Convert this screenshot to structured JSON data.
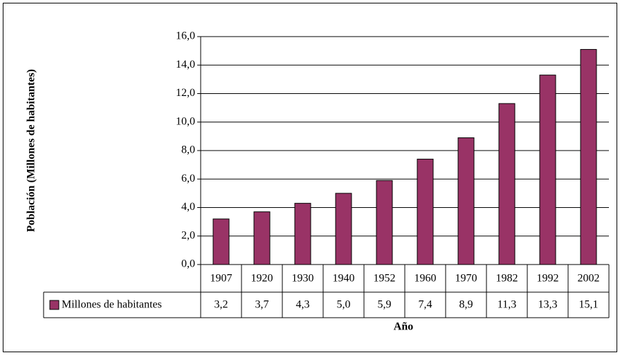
{
  "chart_data": {
    "type": "bar",
    "y_label": "Población (Millones de habitantes)",
    "x_label": "Año",
    "categories": [
      "1907",
      "1920",
      "1930",
      "1940",
      "1952",
      "1960",
      "1970",
      "1982",
      "1992",
      "2002"
    ],
    "series": [
      {
        "name": "Millones de habitantes",
        "color": "#993366",
        "values": [
          3.2,
          3.7,
          4.3,
          5.0,
          5.9,
          7.4,
          8.9,
          11.3,
          13.3,
          15.1
        ],
        "value_labels": [
          "3,2",
          "3,7",
          "4,3",
          "5,0",
          "5,9",
          "7,4",
          "8,9",
          "11,3",
          "13,3",
          "15,1"
        ]
      }
    ],
    "ylim": [
      0,
      16
    ],
    "yticks": [
      {
        "value": 0,
        "label": "0,0"
      },
      {
        "value": 2,
        "label": "2,0"
      },
      {
        "value": 4,
        "label": "4,0"
      },
      {
        "value": 6,
        "label": "6,0"
      },
      {
        "value": 8,
        "label": "8,0"
      },
      {
        "value": 10,
        "label": "10,0"
      },
      {
        "value": 12,
        "label": "12,0"
      },
      {
        "value": 14,
        "label": "14,0"
      },
      {
        "value": 16,
        "label": "16,0"
      }
    ],
    "grid": true
  }
}
